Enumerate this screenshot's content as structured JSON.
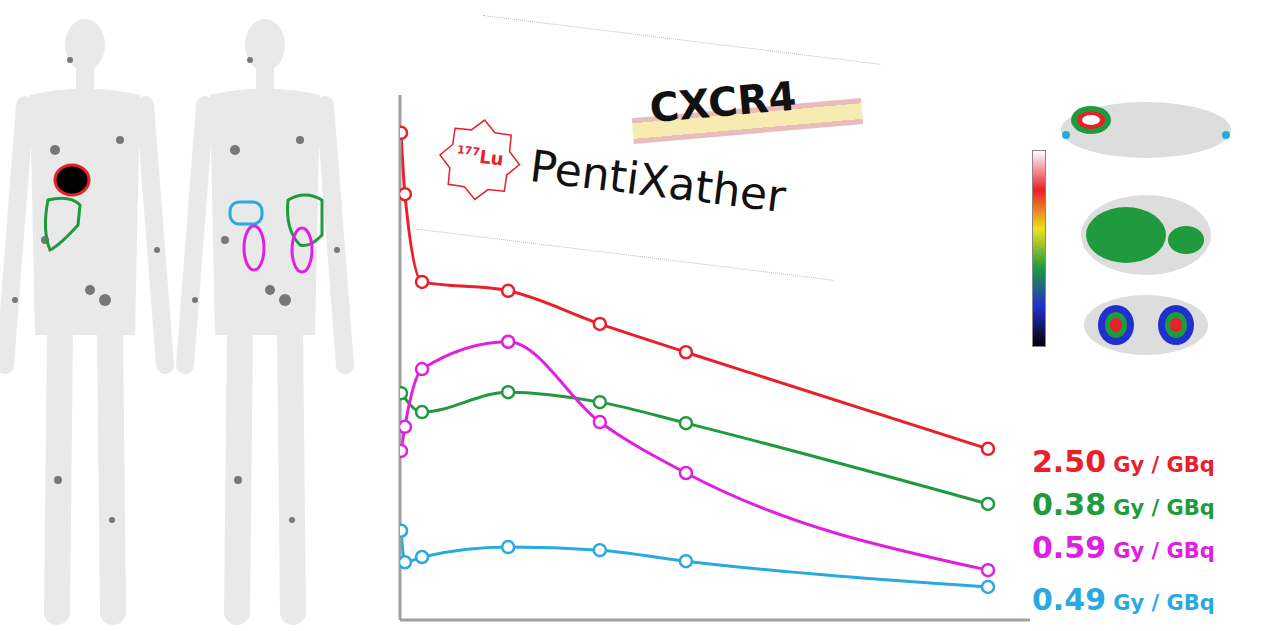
{
  "chart_data": {
    "type": "line",
    "tick_labels": false,
    "marker": "circle",
    "xlim": [
      0,
      180
    ],
    "ylim": [
      0,
      100
    ],
    "annotations": [
      "177Lu",
      "PentiXather",
      "CXCR4"
    ],
    "series": [
      {
        "name": "2.50 Gy / GBq",
        "color": "#e8202a",
        "x": [
          0.3,
          1.4,
          6.3,
          30.9,
          57.1,
          81.7,
          168
        ],
        "values": [
          92.8,
          81.1,
          64.4,
          62.7,
          56.4,
          51.0,
          32.6
        ]
      },
      {
        "name": "0.38 Gy / GBq",
        "color": "#1f9a3c",
        "x": [
          0.3,
          6.3,
          30.9,
          57.1,
          81.7,
          168
        ],
        "values": [
          43.2,
          39.6,
          43.4,
          41.5,
          37.5,
          22.1
        ]
      },
      {
        "name": "0.59 Gy / GBq",
        "color": "#e020e0",
        "x": [
          0.3,
          1.4,
          6.3,
          30.9,
          57.1,
          81.7,
          168
        ],
        "values": [
          32.2,
          36.8,
          47.8,
          53.0,
          37.7,
          28.0,
          9.5
        ]
      },
      {
        "name": "0.49 Gy / GBq",
        "color": "#29a9e0",
        "x": [
          0.3,
          1.4,
          6.3,
          30.9,
          57.1,
          81.7,
          168
        ],
        "values": [
          17.0,
          11.0,
          12.0,
          13.9,
          13.3,
          11.2,
          6.3
        ]
      }
    ]
  }
}
